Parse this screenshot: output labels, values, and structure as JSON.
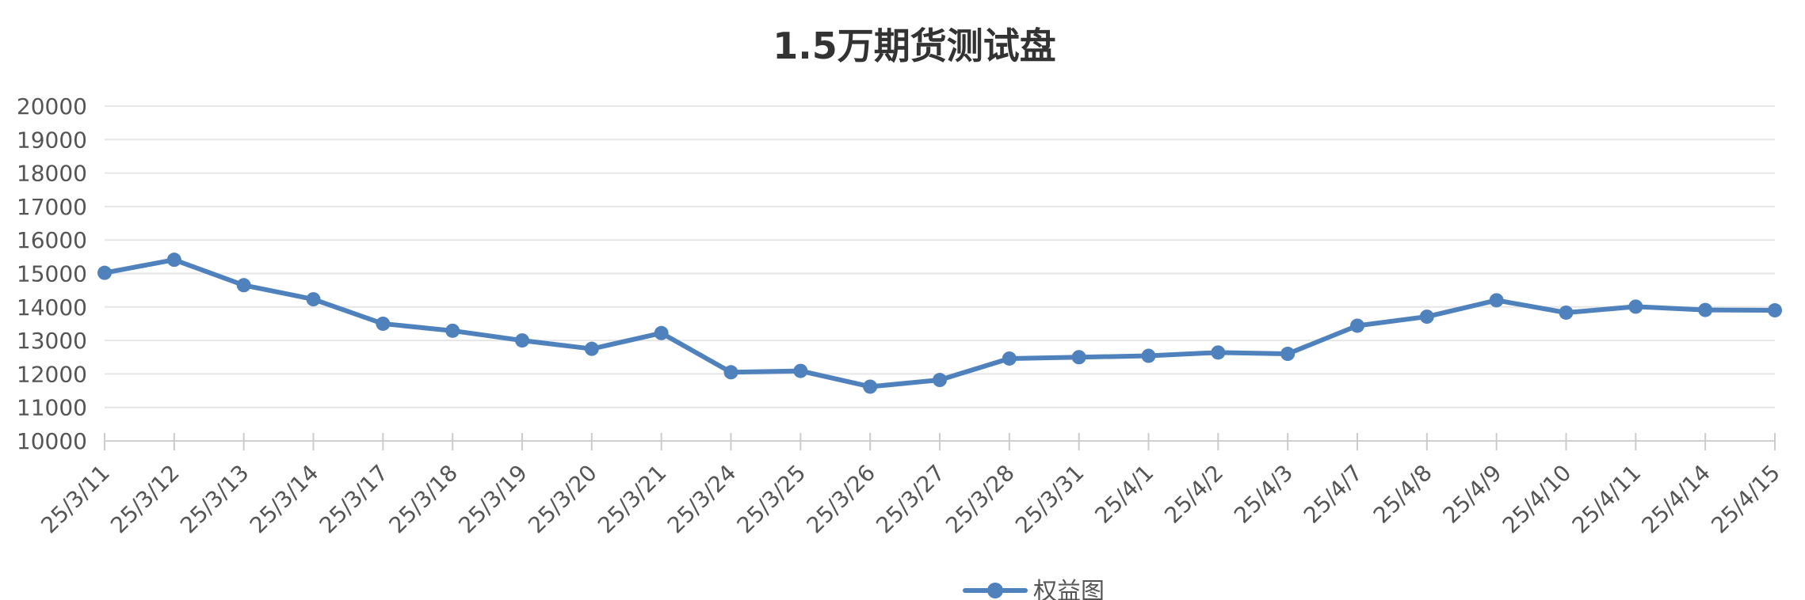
{
  "chart_data": {
    "type": "line",
    "title": "1.5万期货测试盘",
    "categories": [
      "25/3/11",
      "25/3/12",
      "25/3/13",
      "25/3/14",
      "25/3/17",
      "25/3/18",
      "25/3/19",
      "25/3/20",
      "25/3/21",
      "25/3/24",
      "25/3/25",
      "25/3/26",
      "25/3/27",
      "25/3/28",
      "25/3/31",
      "25/4/1",
      "25/4/2",
      "25/4/3",
      "25/4/7",
      "25/4/8",
      "25/4/9",
      "25/4/10",
      "25/4/11",
      "25/4/14",
      "25/4/15"
    ],
    "series": [
      {
        "name": "权益图",
        "color": "#4f81bd",
        "values": [
          15020,
          15410,
          14650,
          14230,
          13500,
          13290,
          13000,
          12750,
          13220,
          12050,
          12090,
          11620,
          11820,
          12460,
          12500,
          12540,
          12640,
          12600,
          13440,
          13710,
          14200,
          13830,
          14010,
          13910,
          13900
        ]
      }
    ],
    "yticks": [
      10000,
      11000,
      12000,
      13000,
      14000,
      15000,
      16000,
      17000,
      18000,
      19000,
      20000
    ],
    "ylim": [
      10000,
      20000
    ],
    "grid": true,
    "legend": "bottom-center"
  }
}
